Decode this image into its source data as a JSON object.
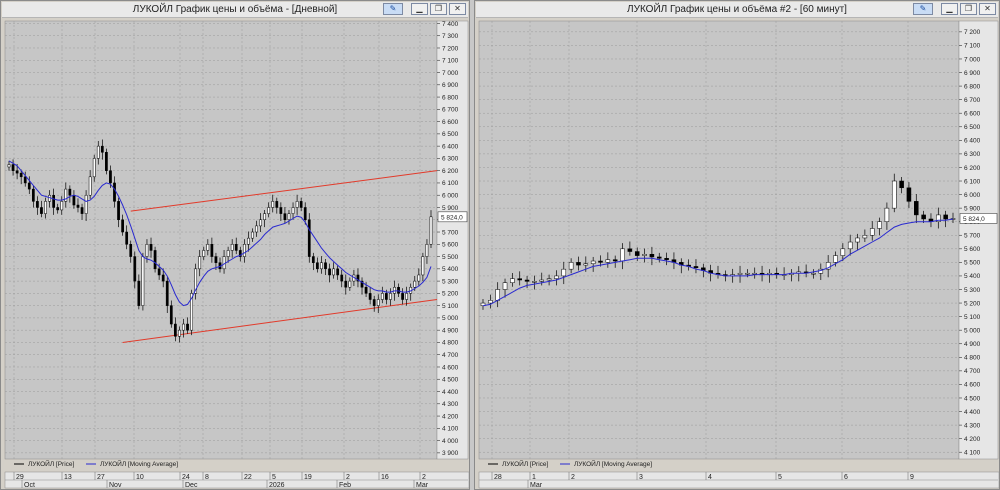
{
  "windows": [
    {
      "title": "ЛУКОЙЛ График цены и объёма - [Дневной]",
      "price_label": "5 824,0",
      "legend": [
        {
          "text": "ЛУКОЙЛ [Price]",
          "color": "#000000"
        },
        {
          "text": "ЛУКОЙЛ [Moving Average]",
          "color": "#2a2ad0"
        }
      ],
      "x_top": [
        "29",
        "13",
        "27",
        "10",
        "24",
        "8",
        "22",
        "5",
        "19",
        "2",
        "16",
        "2"
      ],
      "x_bottom": [
        "Oct",
        "Nov",
        "Dec",
        "2026",
        "Feb",
        "Mar"
      ]
    },
    {
      "title": "ЛУКОЙЛ График цены и объёма #2 - [60 минут]",
      "price_label": "5 824,0",
      "legend": [
        {
          "text": "ЛУКОЙЛ [Price]",
          "color": "#000000"
        },
        {
          "text": "ЛУКОЙЛ [Moving Average]",
          "color": "#2a2ad0"
        }
      ],
      "x_top": [
        "28",
        "1",
        "2",
        "3",
        "4",
        "5",
        "6",
        "9"
      ],
      "x_bottom": [
        "Mar"
      ]
    }
  ],
  "chart_data": [
    {
      "type": "candlestick",
      "title": "ЛУКОЙЛ График цены и объёма - [Дневной]",
      "y_ticks": [
        "3 900",
        "4 000",
        "4 100",
        "4 200",
        "4 300",
        "4 400",
        "4 500",
        "4 600",
        "4 700",
        "4 800",
        "4 900",
        "5 000",
        "5 100",
        "5 200",
        "5 300",
        "5 400",
        "5 500",
        "5 600",
        "5 700",
        "5 800",
        "5 900",
        "6 000",
        "6 100",
        "6 200",
        "6 300",
        "6 400",
        "6 500",
        "6 600",
        "6 700",
        "6 800",
        "6 900",
        "7 000",
        "7 100",
        "7 200",
        "7 300",
        "7 400"
      ],
      "ylim": [
        3850,
        7420
      ],
      "series": [
        {
          "name": "ЛУКОЙЛ [Price]",
          "values": [
            6250,
            6200,
            6180,
            6150,
            6100,
            6050,
            5950,
            5900,
            5850,
            5950,
            6000,
            5900,
            5880,
            5950,
            6050,
            6000,
            5920,
            5900,
            5850,
            6000,
            6150,
            6300,
            6400,
            6350,
            6200,
            6100,
            5950,
            5800,
            5700,
            5600,
            5500,
            5300,
            5100,
            5500,
            5600,
            5550,
            5400,
            5350,
            5300,
            5100,
            4950,
            4850,
            4900,
            4950,
            4900,
            5200,
            5400,
            5500,
            5550,
            5600,
            5500,
            5450,
            5400,
            5500,
            5550,
            5600,
            5550,
            5500,
            5600,
            5650,
            5700,
            5750,
            5800,
            5850,
            5900,
            5950,
            5900,
            5850,
            5800,
            5850,
            5900,
            5950,
            5900,
            5800,
            5500,
            5450,
            5400,
            5450,
            5400,
            5350,
            5400,
            5350,
            5300,
            5250,
            5300,
            5350,
            5300,
            5250,
            5200,
            5150,
            5100,
            5150,
            5200,
            5150,
            5200,
            5250,
            5200,
            5150,
            5200,
            5250,
            5300,
            5350,
            5500,
            5600,
            5824
          ]
        },
        {
          "name": "ЛУКОЙЛ [Moving Average]",
          "values": [
            6280,
            6260,
            6240,
            6200,
            6160,
            6120,
            6080,
            6040,
            6000,
            5990,
            5980,
            5970,
            5960,
            5960,
            5970,
            5990,
            6000,
            5990,
            5970,
            5950,
            5960,
            5990,
            6040,
            6080,
            6100,
            6090,
            6050,
            5990,
            5920,
            5840,
            5750,
            5650,
            5550,
            5500,
            5480,
            5470,
            5450,
            5420,
            5390,
            5340,
            5270,
            5190,
            5130,
            5100,
            5110,
            5160,
            5230,
            5290,
            5340,
            5380,
            5400,
            5410,
            5420,
            5440,
            5460,
            5480,
            5500,
            5510,
            5530,
            5550,
            5580,
            5610,
            5640,
            5680,
            5710,
            5740,
            5750,
            5760,
            5770,
            5790,
            5810,
            5830,
            5820,
            5780,
            5720,
            5670,
            5620,
            5570,
            5530,
            5490,
            5460,
            5430,
            5400,
            5370,
            5350,
            5330,
            5310,
            5290,
            5270,
            5250,
            5230,
            5220,
            5220,
            5210,
            5210,
            5220,
            5220,
            5210,
            5210,
            5220,
            5240,
            5260,
            5290,
            5330,
            5420
          ]
        }
      ]
    },
    {
      "type": "candlestick",
      "title": "ЛУКОЙЛ График цены и объёма #2 - [60 минут]",
      "y_ticks": [
        "4 100",
        "4 200",
        "4 300",
        "4 400",
        "4 500",
        "4 600",
        "4 700",
        "4 800",
        "4 900",
        "5 000",
        "5 100",
        "5 200",
        "5 300",
        "5 400",
        "5 500",
        "5 600",
        "5 700",
        "5 800",
        "5 900",
        "6 000",
        "6 100",
        "6 200",
        "6 300",
        "6 400",
        "6 500",
        "6 600",
        "6 700",
        "6 800",
        "6 900",
        "7 000",
        "7 100",
        "7 200"
      ],
      "ylim": [
        4050,
        7280
      ],
      "series": [
        {
          "name": "ЛУКОЙЛ [Price]",
          "values": [
            5200,
            5220,
            5300,
            5350,
            5380,
            5370,
            5360,
            5360,
            5370,
            5380,
            5400,
            5450,
            5500,
            5480,
            5490,
            5510,
            5500,
            5520,
            5510,
            5600,
            5580,
            5550,
            5560,
            5540,
            5530,
            5520,
            5500,
            5480,
            5470,
            5460,
            5440,
            5420,
            5410,
            5400,
            5410,
            5420,
            5420,
            5420,
            5410,
            5420,
            5410,
            5410,
            5420,
            5430,
            5420,
            5420,
            5450,
            5500,
            5550,
            5600,
            5650,
            5680,
            5700,
            5750,
            5800,
            5900,
            6100,
            6050,
            5950,
            5850,
            5820,
            5800,
            5850,
            5820,
            5824
          ]
        },
        {
          "name": "ЛУКОЙЛ [Moving Average]",
          "values": [
            5180,
            5190,
            5220,
            5250,
            5280,
            5310,
            5330,
            5340,
            5350,
            5360,
            5370,
            5390,
            5410,
            5430,
            5450,
            5470,
            5480,
            5490,
            5500,
            5510,
            5520,
            5530,
            5530,
            5530,
            5520,
            5510,
            5500,
            5480,
            5470,
            5450,
            5440,
            5420,
            5410,
            5400,
            5400,
            5400,
            5400,
            5410,
            5410,
            5410,
            5410,
            5410,
            5420,
            5420,
            5420,
            5430,
            5440,
            5460,
            5490,
            5520,
            5560,
            5590,
            5620,
            5650,
            5680,
            5720,
            5760,
            5780,
            5790,
            5800,
            5800,
            5800,
            5810,
            5810,
            5820
          ]
        }
      ]
    }
  ]
}
